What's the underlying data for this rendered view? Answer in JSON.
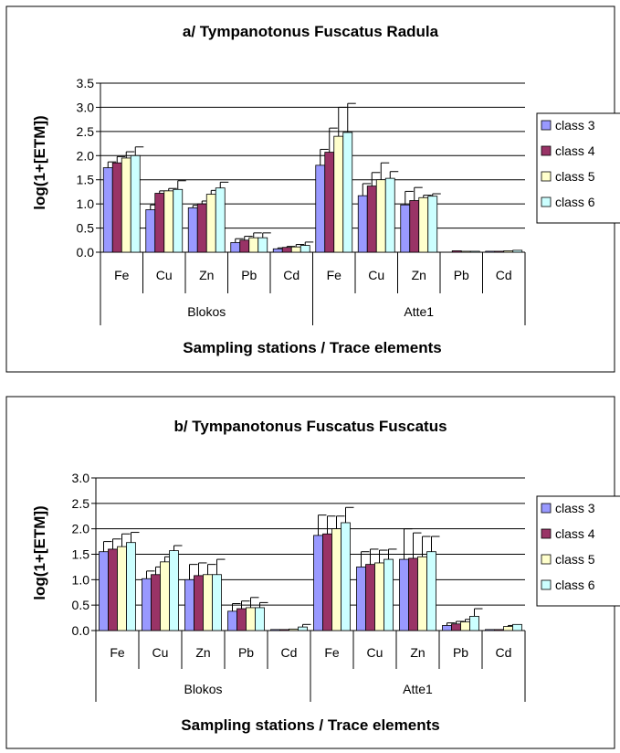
{
  "legend_title_hidden": "",
  "chart_data": [
    {
      "type": "bar",
      "title": "a/ Tympanotonus Fuscatus Radula",
      "xlabel": "Sampling stations / Trace elements",
      "ylabel": "log(1+[ETM])",
      "ylim": [
        0,
        3.5
      ],
      "yticks": [
        "0.0",
        "0.5",
        "1.0",
        "1.5",
        "2.0",
        "2.5",
        "3.0",
        "3.5"
      ],
      "grid": true,
      "legend_position": "right",
      "groups": [
        {
          "name": "Blokos",
          "categories": [
            "Fe",
            "Cu",
            "Zn",
            "Pb",
            "Cd"
          ]
        },
        {
          "name": "Atte1",
          "categories": [
            "Fe",
            "Cu",
            "Zn",
            "Pb",
            "Cd"
          ]
        }
      ],
      "series": [
        {
          "name": "class 3",
          "color": "#9999ff",
          "values": [
            1.75,
            0.88,
            0.92,
            0.2,
            0.07,
            1.8,
            1.17,
            0.98,
            0.0,
            0.02
          ],
          "errors": [
            0.12,
            0.1,
            0.05,
            0.08,
            0.02,
            0.33,
            0.25,
            0.28,
            0.0,
            0.0
          ]
        },
        {
          "name": "class 4",
          "color": "#993366",
          "values": [
            1.85,
            1.22,
            1.0,
            0.25,
            0.1,
            2.07,
            1.37,
            1.07,
            0.03,
            0.02
          ],
          "errors": [
            0.13,
            0.05,
            0.06,
            0.08,
            0.02,
            0.5,
            0.28,
            0.27,
            0.0,
            0.0
          ]
        },
        {
          "name": "class 5",
          "color": "#ffffcc",
          "values": [
            1.95,
            1.27,
            1.2,
            0.3,
            0.11,
            2.4,
            1.5,
            1.13,
            0.02,
            0.03
          ],
          "errors": [
            0.13,
            0.05,
            0.08,
            0.1,
            0.05,
            0.6,
            0.35,
            0.05,
            0.0,
            0.0
          ]
        },
        {
          "name": "class 6",
          "color": "#ccffff",
          "values": [
            2.0,
            1.3,
            1.33,
            0.3,
            0.14,
            2.48,
            1.53,
            1.16,
            0.02,
            0.04
          ],
          "errors": [
            0.18,
            0.18,
            0.12,
            0.1,
            0.07,
            0.6,
            0.14,
            0.05,
            0.0,
            0.0
          ]
        }
      ]
    },
    {
      "type": "bar",
      "title": "b/ Tympanotonus Fuscatus Fuscatus",
      "xlabel": "Sampling stations / Trace elements",
      "ylabel": "log(1+[ETM])",
      "ylim": [
        0,
        3.0
      ],
      "yticks": [
        "0.0",
        "0.5",
        "1.0",
        "1.5",
        "2.0",
        "2.5",
        "3.0"
      ],
      "grid": true,
      "legend_position": "right",
      "groups": [
        {
          "name": "Blokos",
          "categories": [
            "Fe",
            "Cu",
            "Zn",
            "Pb",
            "Cd"
          ]
        },
        {
          "name": "Atte1",
          "categories": [
            "Fe",
            "Cu",
            "Zn",
            "Pb",
            "Cd"
          ]
        }
      ],
      "series": [
        {
          "name": "class 3",
          "color": "#9999ff",
          "values": [
            1.55,
            1.02,
            1.0,
            0.38,
            0.02,
            1.87,
            1.25,
            1.4,
            0.1,
            0.02
          ],
          "errors": [
            0.2,
            0.15,
            0.3,
            0.15,
            0.0,
            0.4,
            0.3,
            0.6,
            0.05,
            0.0
          ]
        },
        {
          "name": "class 4",
          "color": "#993366",
          "values": [
            1.6,
            1.1,
            1.08,
            0.43,
            0.02,
            1.9,
            1.3,
            1.42,
            0.13,
            0.02
          ],
          "errors": [
            0.2,
            0.15,
            0.25,
            0.15,
            0.0,
            0.35,
            0.3,
            0.5,
            0.05,
            0.0
          ]
        },
        {
          "name": "class 5",
          "color": "#ffffcc",
          "values": [
            1.65,
            1.35,
            1.1,
            0.45,
            0.03,
            2.0,
            1.33,
            1.45,
            0.17,
            0.08
          ],
          "errors": [
            0.25,
            0.1,
            0.2,
            0.2,
            0.0,
            0.25,
            0.25,
            0.4,
            0.05,
            0.02
          ]
        },
        {
          "name": "class 6",
          "color": "#ccffff",
          "values": [
            1.73,
            1.57,
            1.1,
            0.45,
            0.07,
            2.12,
            1.4,
            1.55,
            0.28,
            0.12
          ],
          "errors": [
            0.2,
            0.1,
            0.3,
            0.1,
            0.05,
            0.3,
            0.2,
            0.3,
            0.15,
            0.0
          ]
        }
      ]
    }
  ]
}
